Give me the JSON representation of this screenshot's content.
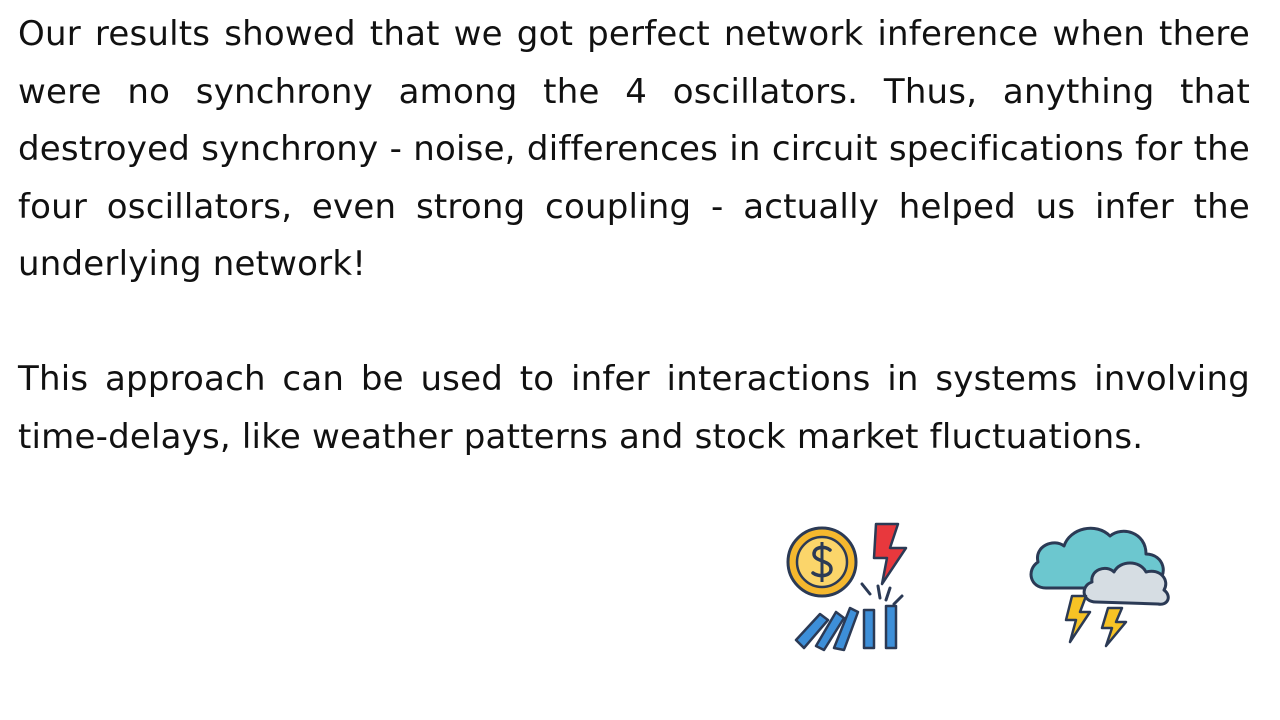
{
  "slide": {
    "paragraphs": [
      "Our results showed that we got perfect network inference when there were no synchrony among the 4 oscillators. Thus, anything that destroyed synchrony - noise, differences in circuit specifications for the four oscillators, even strong coupling - actually helped us infer the underlying network!",
      "This approach can be used to infer interactions in systems involving time-delays, like weather patterns and stock market fluctuations."
    ],
    "icons": [
      "stock-market-crash-icon",
      "thunderstorm-icon"
    ],
    "colors": {
      "text": "#111111",
      "coin": "#f5b82e",
      "lightning": "#e8383d",
      "bars": "#3d8fd9",
      "cloud_teal": "#6cc7cf",
      "cloud_gray": "#d6dde3",
      "bolt_yellow": "#f7c325"
    }
  }
}
